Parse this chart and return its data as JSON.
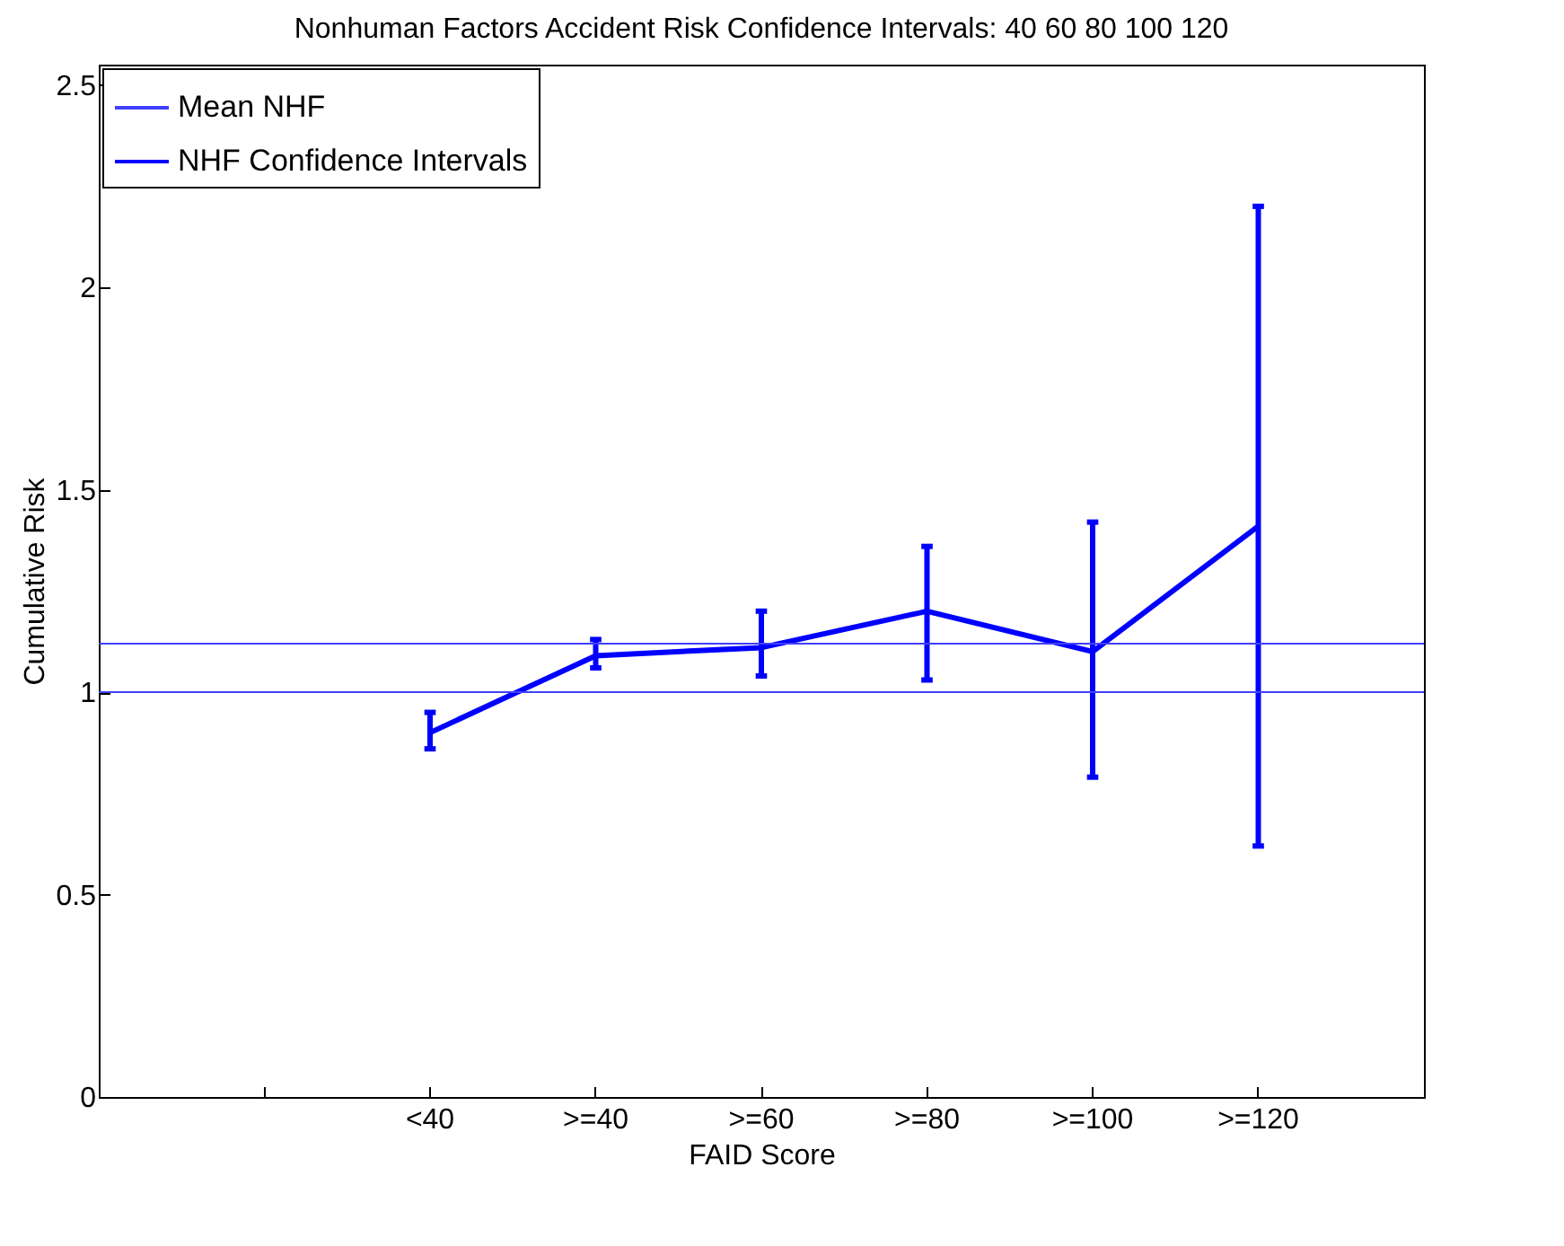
{
  "chart_data": {
    "type": "line",
    "title": "Nonhuman Factors Accident Risk Confidence Intervals: 40   60   80  100  120",
    "xlabel": "FAID Score",
    "ylabel": "Cumulative Risk",
    "categories": [
      null,
      "<40",
      ">=40",
      ">=60",
      ">=80",
      ">=100",
      ">=120"
    ],
    "series": [
      {
        "name": "NHF Confidence Intervals",
        "color": "#0000ff",
        "values": [
          null,
          0.9,
          1.09,
          1.11,
          1.2,
          1.1,
          1.41
        ],
        "errors": [
          null,
          [
            0.86,
            0.95
          ],
          [
            1.06,
            1.13
          ],
          [
            1.04,
            1.2
          ],
          [
            1.03,
            1.36
          ],
          [
            0.79,
            1.42
          ],
          [
            0.62,
            2.2
          ]
        ]
      }
    ],
    "ref_lines": [
      {
        "axis": "y",
        "value": 1.12,
        "label": "Mean NHF",
        "color": "#4040ff"
      },
      {
        "axis": "y",
        "value": 1,
        "color": "#4040ff"
      }
    ],
    "ylim": [
      0,
      2.55
    ],
    "yticks": [
      0,
      0.5,
      1,
      1.5,
      2,
      2.5
    ],
    "grid": false,
    "legend": "top left",
    "marker": "none",
    "line_style": "solid"
  }
}
